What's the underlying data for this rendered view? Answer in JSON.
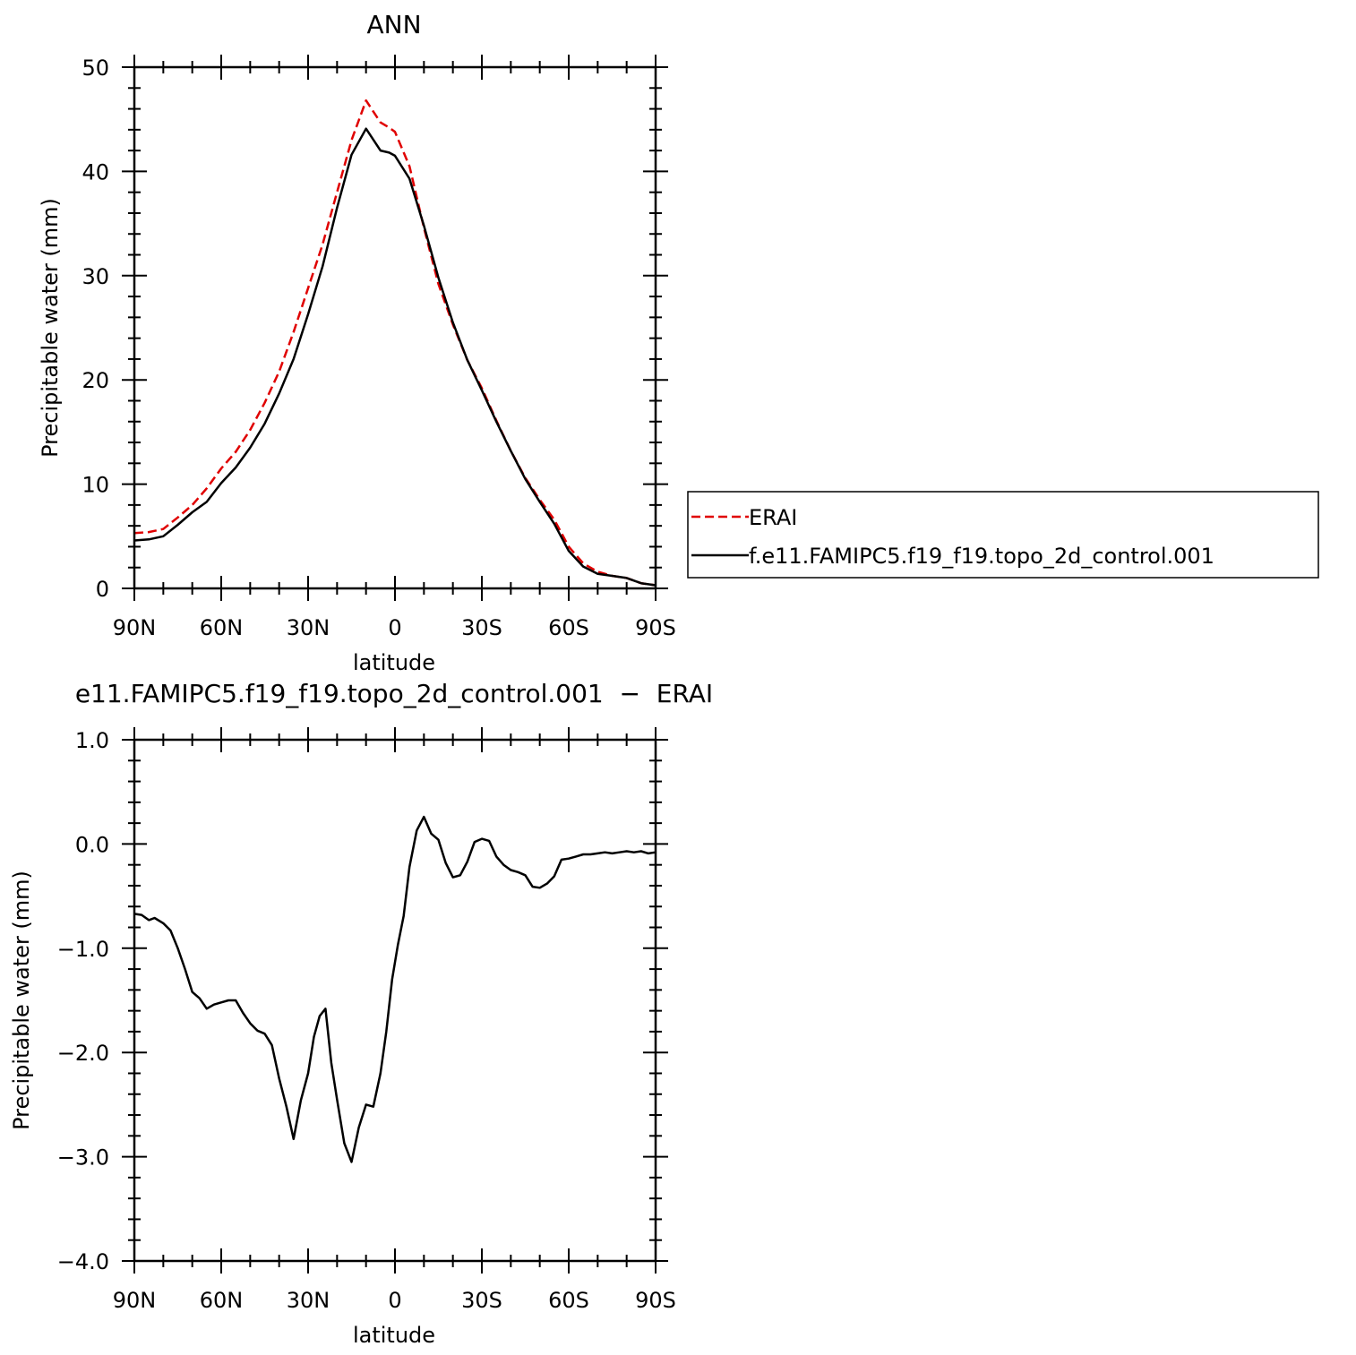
{
  "chart_data": [
    {
      "type": "line",
      "title": "ANN",
      "xlabel": "latitude",
      "ylabel": "Precipitable water (mm)",
      "xlim": [
        90,
        -90
      ],
      "ylim": [
        0,
        50
      ],
      "x_ticks": [
        {
          "value": 90,
          "label": "90N"
        },
        {
          "value": 60,
          "label": "60N"
        },
        {
          "value": 30,
          "label": "30N"
        },
        {
          "value": 0,
          "label": "0"
        },
        {
          "value": -30,
          "label": "30S"
        },
        {
          "value": -60,
          "label": "60S"
        },
        {
          "value": -90,
          "label": "90S"
        }
      ],
      "y_ticks": [
        {
          "value": 0,
          "label": "0"
        },
        {
          "value": 10,
          "label": "10"
        },
        {
          "value": 20,
          "label": "20"
        },
        {
          "value": 30,
          "label": "30"
        },
        {
          "value": 40,
          "label": "40"
        },
        {
          "value": 50,
          "label": "50"
        }
      ],
      "grid": false,
      "legend_position": "right",
      "series": [
        {
          "name": "ERAI",
          "color": "#e00000",
          "dash": "dashed",
          "x": [
            90,
            85,
            80,
            75,
            70,
            65,
            60,
            55,
            50,
            45,
            40,
            35,
            30,
            25,
            20,
            15,
            10,
            5,
            2,
            0,
            -5,
            -10,
            -15,
            -20,
            -25,
            -30,
            -35,
            -40,
            -45,
            -50,
            -55,
            -60,
            -65,
            -70,
            -75,
            -80,
            -85,
            -90
          ],
          "values": [
            5.3,
            5.4,
            5.7,
            6.8,
            8.0,
            9.6,
            11.5,
            13.1,
            15.2,
            17.8,
            20.8,
            24.6,
            28.8,
            33.0,
            38.0,
            43.0,
            46.8,
            44.7,
            44.2,
            43.8,
            40.5,
            34.6,
            29.2,
            25.3,
            21.9,
            19.2,
            16.1,
            13.2,
            10.6,
            8.5,
            6.6,
            4.0,
            2.4,
            1.6,
            1.2,
            1.0,
            0.5,
            0.3
          ]
        },
        {
          "name": "f.e11.FAMIPC5.f19_f19.topo_2d_control.001",
          "color": "#000000",
          "dash": "solid",
          "x": [
            90,
            85,
            80,
            75,
            70,
            65,
            60,
            55,
            50,
            45,
            40,
            35,
            30,
            25,
            20,
            15,
            10,
            5,
            2,
            0,
            -5,
            -10,
            -15,
            -20,
            -25,
            -30,
            -35,
            -40,
            -45,
            -50,
            -55,
            -60,
            -65,
            -70,
            -75,
            -80,
            -85,
            -90
          ],
          "values": [
            4.6,
            4.7,
            5.0,
            6.1,
            7.3,
            8.3,
            10.1,
            11.6,
            13.5,
            15.8,
            18.7,
            22.0,
            26.3,
            30.9,
            36.5,
            41.6,
            44.1,
            42.0,
            41.8,
            41.5,
            39.3,
            34.8,
            29.8,
            25.5,
            21.9,
            19.0,
            16.0,
            13.2,
            10.5,
            8.3,
            6.2,
            3.6,
            2.1,
            1.4,
            1.2,
            1.0,
            0.5,
            0.3
          ]
        }
      ]
    },
    {
      "type": "line",
      "title": "e11.FAMIPC5.f19_f19.topo_2d_control.001  −  ERAI",
      "xlabel": "latitude",
      "ylabel": "Precipitable water (mm)",
      "xlim": [
        90,
        -90
      ],
      "ylim": [
        -4.0,
        1.0
      ],
      "x_ticks": [
        {
          "value": 90,
          "label": "90N"
        },
        {
          "value": 60,
          "label": "60N"
        },
        {
          "value": 30,
          "label": "30N"
        },
        {
          "value": 0,
          "label": "0"
        },
        {
          "value": -30,
          "label": "30S"
        },
        {
          "value": -60,
          "label": "60S"
        },
        {
          "value": -90,
          "label": "90S"
        }
      ],
      "y_ticks": [
        {
          "value": -4.0,
          "label": "−4.0"
        },
        {
          "value": -3.0,
          "label": "−3.0"
        },
        {
          "value": -2.0,
          "label": "−2.0"
        },
        {
          "value": -1.0,
          "label": "−1.0"
        },
        {
          "value": 0.0,
          "label": "0.0"
        },
        {
          "value": 1.0,
          "label": "1.0"
        }
      ],
      "grid": false,
      "series": [
        {
          "color": "#000000",
          "dash": "solid",
          "x": [
            90,
            87.5,
            85,
            83,
            80,
            77.5,
            75,
            72.5,
            70,
            67.5,
            65,
            62.5,
            60,
            57.5,
            55,
            52.5,
            50,
            47.5,
            45,
            42.5,
            40,
            37.5,
            35,
            32.5,
            30,
            28,
            26,
            24,
            22,
            20,
            17.5,
            15,
            12.5,
            10,
            7.5,
            5,
            3,
            1,
            -1,
            -3,
            -5,
            -7.5,
            -10,
            -12.5,
            -15,
            -17.5,
            -20,
            -22.5,
            -25,
            -27.5,
            -30,
            -32.5,
            -35,
            -37.5,
            -40,
            -42.5,
            -45,
            -47.5,
            -50,
            -52.5,
            -55,
            -57.5,
            -60,
            -62.5,
            -65,
            -67.5,
            -70,
            -72.5,
            -75,
            -77.5,
            -80,
            -82.5,
            -85,
            -87.5,
            -90
          ],
          "values": [
            -0.67,
            -0.68,
            -0.73,
            -0.71,
            -0.76,
            -0.83,
            -1.0,
            -1.2,
            -1.42,
            -1.48,
            -1.58,
            -1.54,
            -1.52,
            -1.5,
            -1.5,
            -1.62,
            -1.72,
            -1.79,
            -1.82,
            -1.93,
            -2.25,
            -2.52,
            -2.83,
            -2.46,
            -2.2,
            -1.85,
            -1.65,
            -1.58,
            -2.1,
            -2.45,
            -2.87,
            -3.05,
            -2.72,
            -2.5,
            -2.52,
            -2.2,
            -1.8,
            -1.3,
            -0.97,
            -0.69,
            -0.22,
            0.13,
            0.26,
            0.1,
            0.04,
            -0.18,
            -0.32,
            -0.3,
            -0.17,
            0.02,
            0.05,
            0.03,
            -0.12,
            -0.2,
            -0.25,
            -0.27,
            -0.3,
            -0.41,
            -0.42,
            -0.38,
            -0.31,
            -0.15,
            -0.14,
            -0.12,
            -0.1,
            -0.1,
            -0.09,
            -0.08,
            -0.09,
            -0.08,
            -0.07,
            -0.08,
            -0.07,
            -0.09,
            -0.08
          ]
        }
      ]
    }
  ]
}
